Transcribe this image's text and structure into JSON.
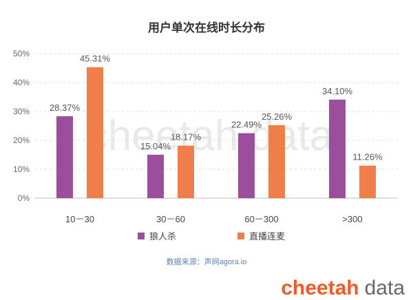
{
  "chart_data": {
    "type": "bar",
    "title": "用户单次在线时长分布",
    "categories": [
      "10－30",
      "30－60",
      "60－300",
      ">300"
    ],
    "series": [
      {
        "name": "狼人杀",
        "values": [
          28.37,
          15.04,
          22.49,
          34.1
        ],
        "labels": [
          "28.37%",
          "15.04%",
          "22.49%",
          "34.10%"
        ],
        "color": "#9b4e9c"
      },
      {
        "name": "直播连麦",
        "values": [
          45.31,
          18.17,
          25.26,
          11.26
        ],
        "labels": [
          "45.31%",
          "18.17%",
          "25.26%",
          "11.26%"
        ],
        "color": "#f07e4a"
      }
    ],
    "ylim": [
      0,
      50
    ],
    "yticks": [
      0,
      10,
      20,
      30,
      40,
      50
    ],
    "ytick_labels": [
      "0%",
      "10%",
      "20%",
      "30%",
      "40%",
      "50%"
    ],
    "grid": true,
    "legend_position": "bottom"
  },
  "source_text": "数据来源：声网agora.io",
  "watermark_text": "cheetah data",
  "logo": {
    "brand": "cheetah",
    "suffix": "data"
  }
}
